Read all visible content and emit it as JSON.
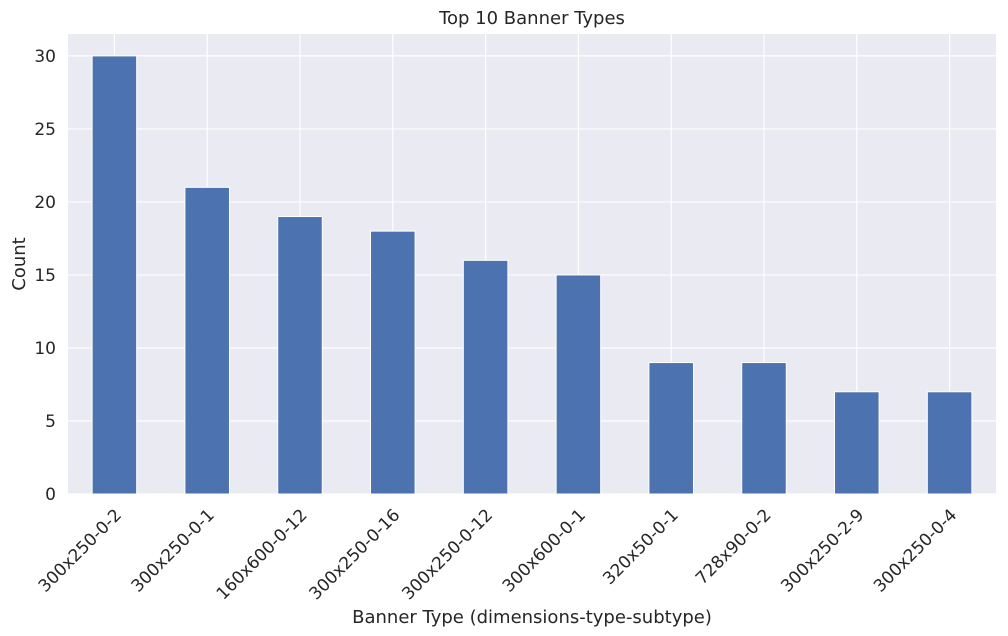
{
  "chart_data": {
    "type": "bar",
    "title": "Top 10 Banner Types",
    "xlabel": "Banner Type (dimensions-type-subtype)",
    "ylabel": "Count",
    "categories": [
      "300x250-0-2",
      "300x250-0-1",
      "160x600-0-12",
      "300x250-0-16",
      "300x250-0-12",
      "300x600-0-1",
      "320x50-0-1",
      "728x90-0-2",
      "300x250-2-9",
      "300x250-0-4"
    ],
    "values": [
      30,
      21,
      19,
      18,
      16,
      15,
      9,
      9,
      7,
      7
    ],
    "ylim": [
      0,
      31.5
    ],
    "yticks": [
      0,
      5,
      10,
      15,
      20,
      25,
      30
    ],
    "grid": true,
    "colors": {
      "bar": "#4c72b0",
      "background": "#eaeaf2",
      "grid": "#ffffff"
    }
  }
}
